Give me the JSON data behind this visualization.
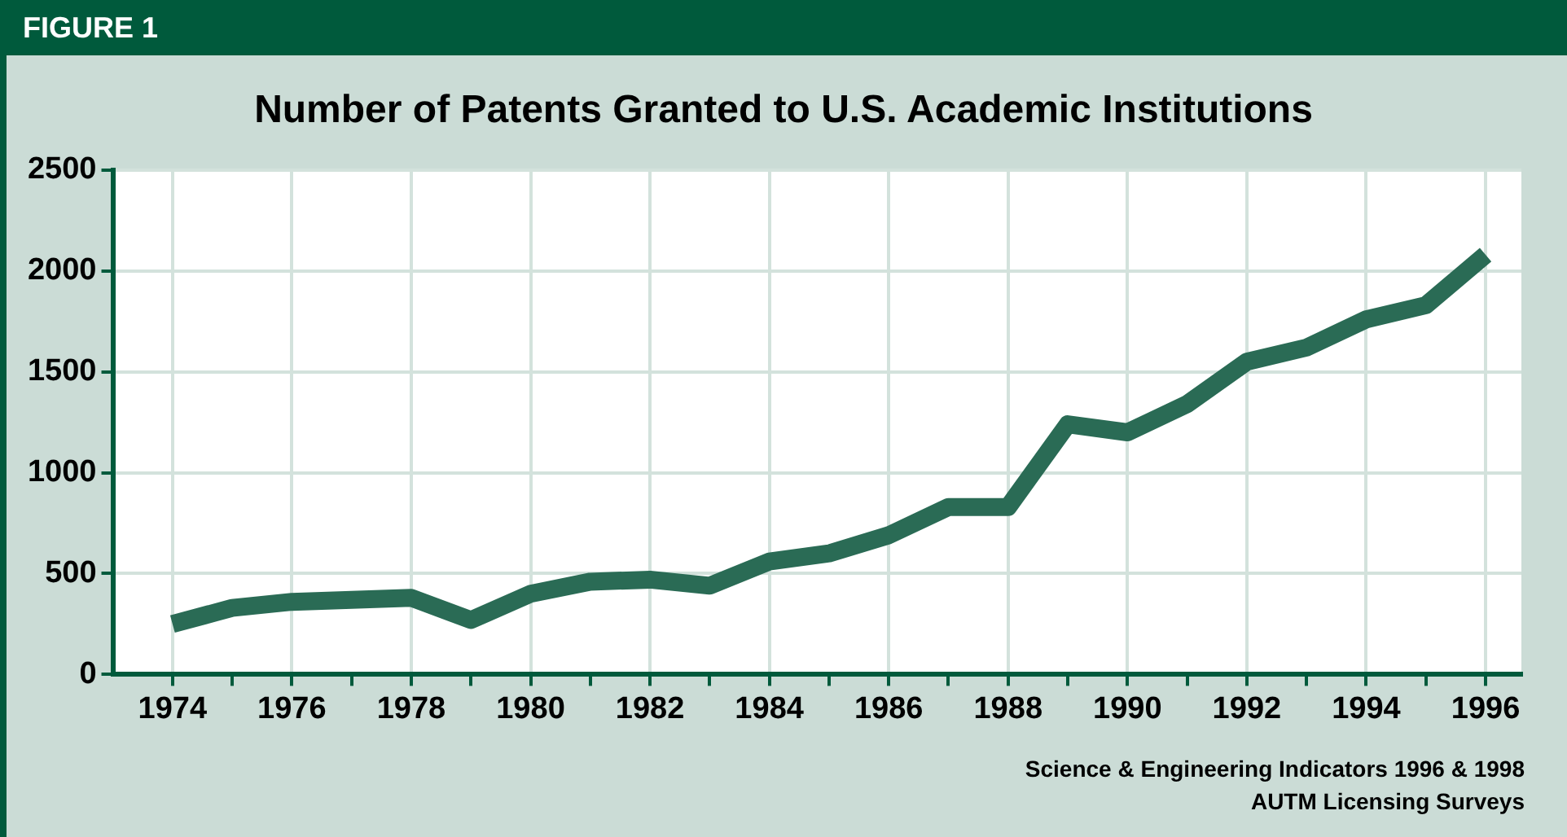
{
  "chart_data": {
    "type": "line",
    "title": "Number of Patents Granted to U.S. Academic Institutions",
    "annotations": [
      "FIGURE 1",
      "Science & Engineering Indicators 1996 & 1998",
      "AUTM Licensing Surveys"
    ],
    "x": [
      1974,
      1975,
      1976,
      1977,
      1978,
      1979,
      1980,
      1981,
      1982,
      1983,
      1984,
      1985,
      1986,
      1987,
      1988,
      1989,
      1990,
      1991,
      1992,
      1993,
      1994,
      1995,
      1996
    ],
    "series": [
      {
        "color": "#2a6b55",
        "values": [
          250,
          330,
          360,
          370,
          380,
          270,
          400,
          460,
          470,
          440,
          560,
          600,
          690,
          830,
          830,
          1240,
          1200,
          1340,
          1550,
          1620,
          1760,
          1830,
          2080
        ]
      }
    ],
    "xlim": [
      1973,
      1996.6
    ],
    "xticks": [
      1974,
      {
        "value": 1975,
        "label": null
      },
      1976,
      {
        "value": 1977,
        "label": null
      },
      1978,
      {
        "value": 1979,
        "label": null
      },
      1980,
      {
        "value": 1981,
        "label": null
      },
      1982,
      {
        "value": 1983,
        "label": null
      },
      1984,
      {
        "value": 1985,
        "label": null
      },
      1986,
      {
        "value": 1987,
        "label": null
      },
      1988,
      {
        "value": 1989,
        "label": null
      },
      1990,
      {
        "value": 1991,
        "label": null
      },
      1992,
      {
        "value": 1993,
        "label": null
      },
      1994,
      {
        "value": 1995,
        "label": null
      },
      1996
    ],
    "ylim": [
      0,
      2500
    ],
    "yticks": [
      0,
      500,
      1000,
      1500,
      2000,
      2500
    ],
    "grid": true,
    "marker": "none",
    "line_style": "solid"
  }
}
